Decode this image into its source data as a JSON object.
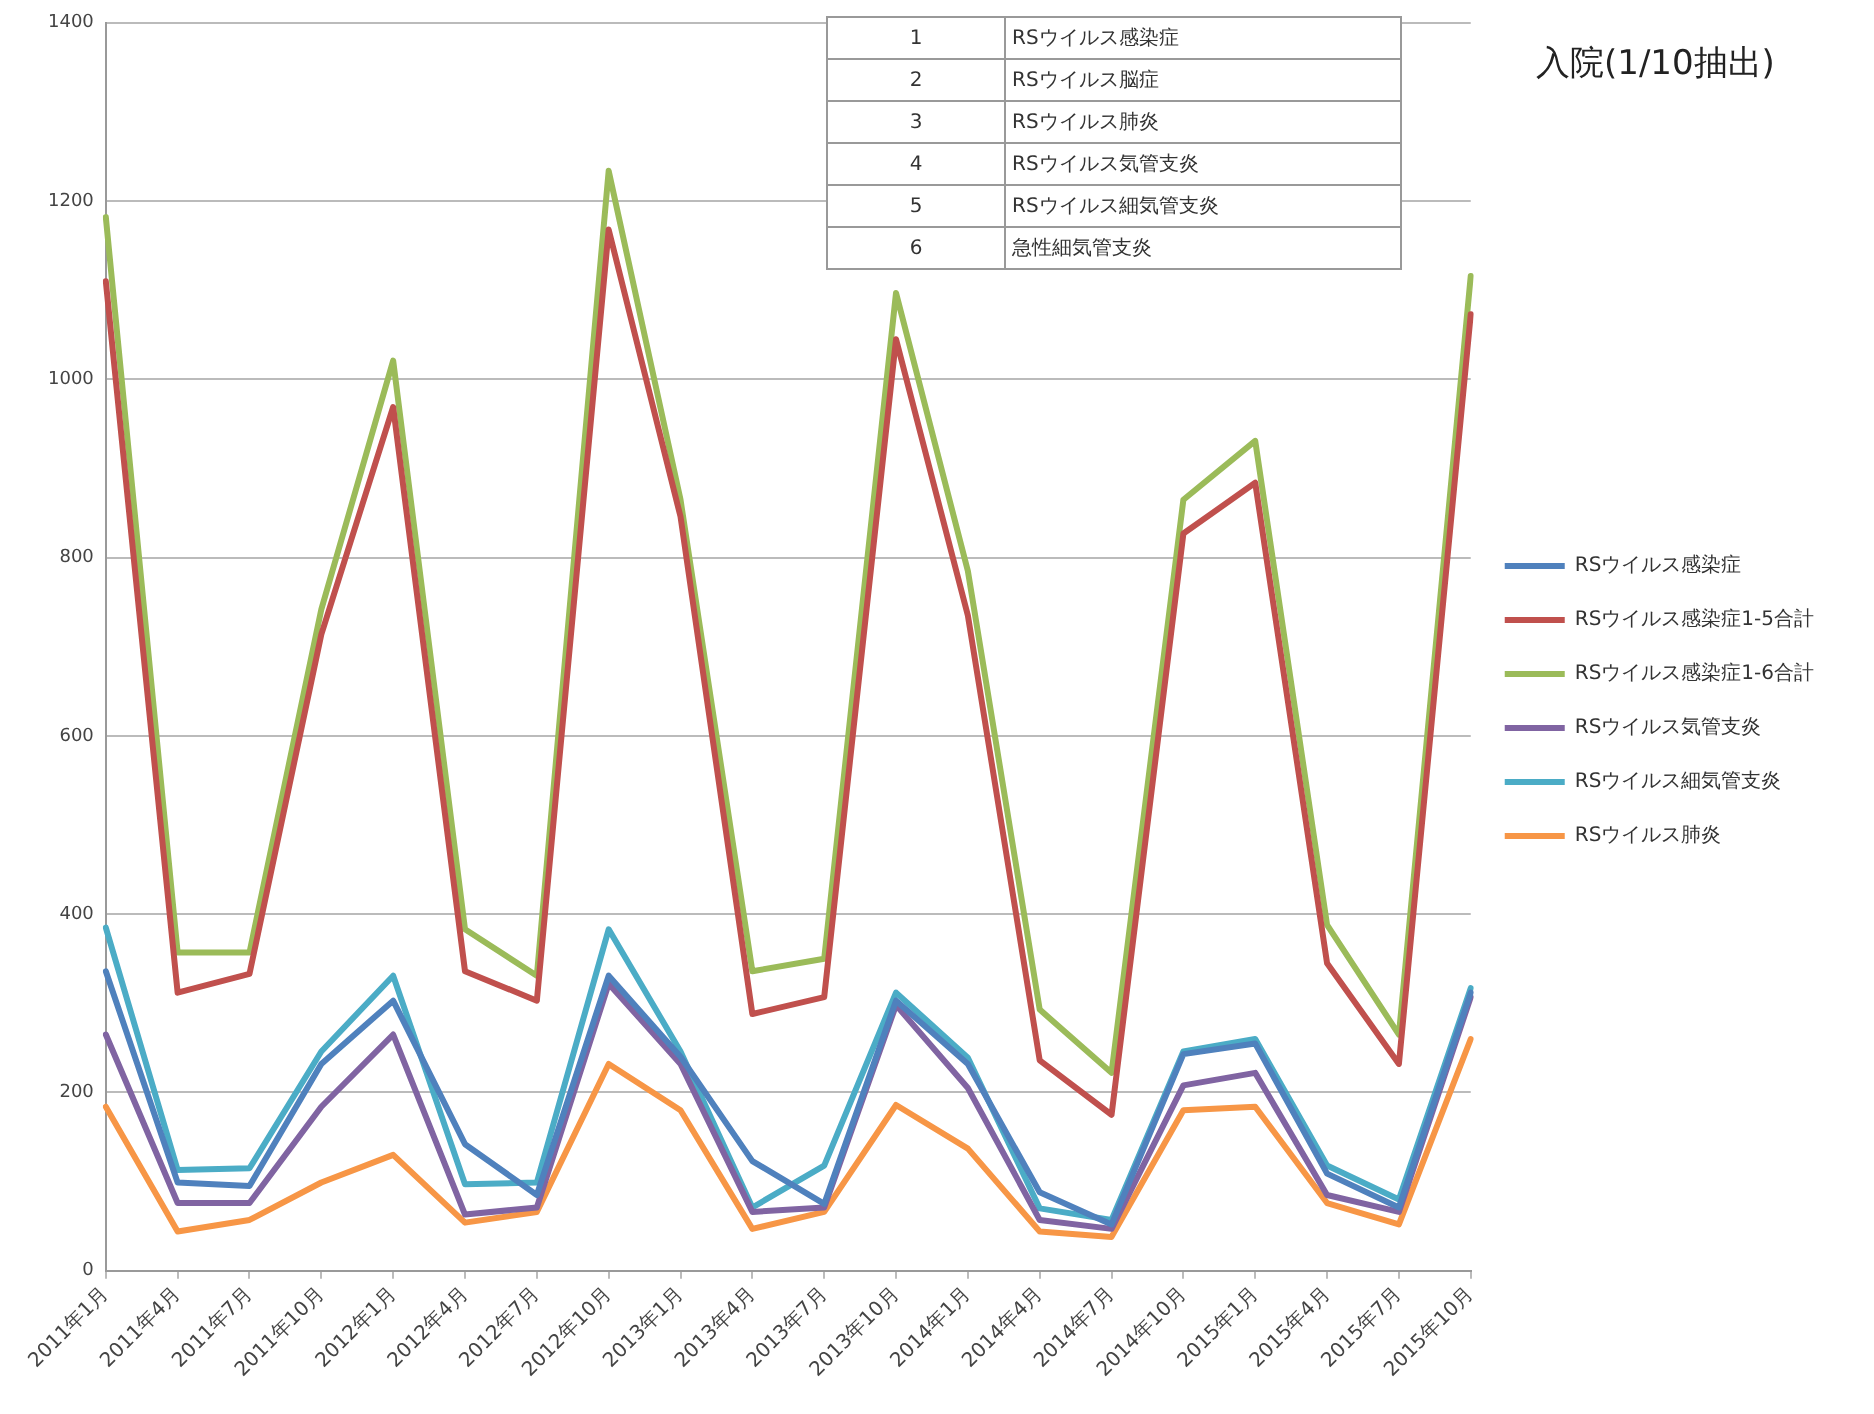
{
  "chart_data": {
    "type": "line",
    "title": "入院(1/10抽出)",
    "categories": [
      "2011年1月",
      "2011年4月",
      "2011年7月",
      "2011年10月",
      "2012年1月",
      "2012年4月",
      "2012年7月",
      "2012年10月",
      "2013年1月",
      "2013年4月",
      "2013年7月",
      "2013年10月",
      "2014年1月",
      "2014年4月",
      "2014年7月",
      "2014年10月",
      "2015年1月",
      "2015年4月",
      "2015年7月",
      "2015年10月"
    ],
    "series": [
      {
        "name": "RSウイルス感染症",
        "color": "#4f81bd",
        "values": [
          336,
          99,
          95,
          232,
          303,
          142,
          85,
          331,
          240,
          123,
          75,
          303,
          232,
          88,
          52,
          243,
          255,
          109,
          71,
          312
        ]
      },
      {
        "name": "RSウイルス感染症1-5合計",
        "color": "#c0504d",
        "values": [
          1110,
          312,
          333,
          714,
          969,
          336,
          303,
          1168,
          846,
          288,
          307,
          1045,
          735,
          236,
          175,
          827,
          884,
          345,
          232,
          1073
        ]
      },
      {
        "name": "RSウイルス感染症1-6合計",
        "color": "#9bbb59",
        "values": [
          1182,
          357,
          357,
          742,
          1021,
          383,
          331,
          1234,
          865,
          336,
          350,
          1097,
          785,
          293,
          222,
          865,
          931,
          388,
          265,
          1116
        ]
      },
      {
        "name": "RSウイルス気管支炎",
        "color": "#8064a2",
        "values": [
          265,
          76,
          76,
          184,
          265,
          63,
          71,
          322,
          232,
          66,
          71,
          298,
          205,
          57,
          47,
          208,
          222,
          85,
          66,
          307
        ]
      },
      {
        "name": "RSウイルス細気管支炎",
        "color": "#4bacc6",
        "values": [
          385,
          113,
          115,
          246,
          331,
          97,
          99,
          383,
          246,
          71,
          118,
          312,
          239,
          70,
          57,
          246,
          260,
          118,
          80,
          317
        ]
      },
      {
        "name": "RSウイルス肺炎",
        "color": "#f79646",
        "values": [
          184,
          44,
          57,
          99,
          130,
          54,
          66,
          232,
          180,
          47,
          66,
          186,
          137,
          44,
          38,
          180,
          184,
          76,
          52,
          260
        ]
      }
    ],
    "ylim": [
      0,
      1400
    ],
    "yticks": [
      0,
      200,
      400,
      600,
      800,
      1000,
      1200,
      1400
    ],
    "grid": "y",
    "legend": "right",
    "marker": "none",
    "line_style": "solid",
    "annotations": [
      "1",
      "RSウイルス感染症",
      "2",
      "RSウイルス脳症",
      "3",
      "RSウイルス肺炎",
      "4",
      "RSウイルス気管支炎",
      "5",
      "RSウイルス細気管支炎",
      "6",
      "急性細気管支炎"
    ]
  }
}
